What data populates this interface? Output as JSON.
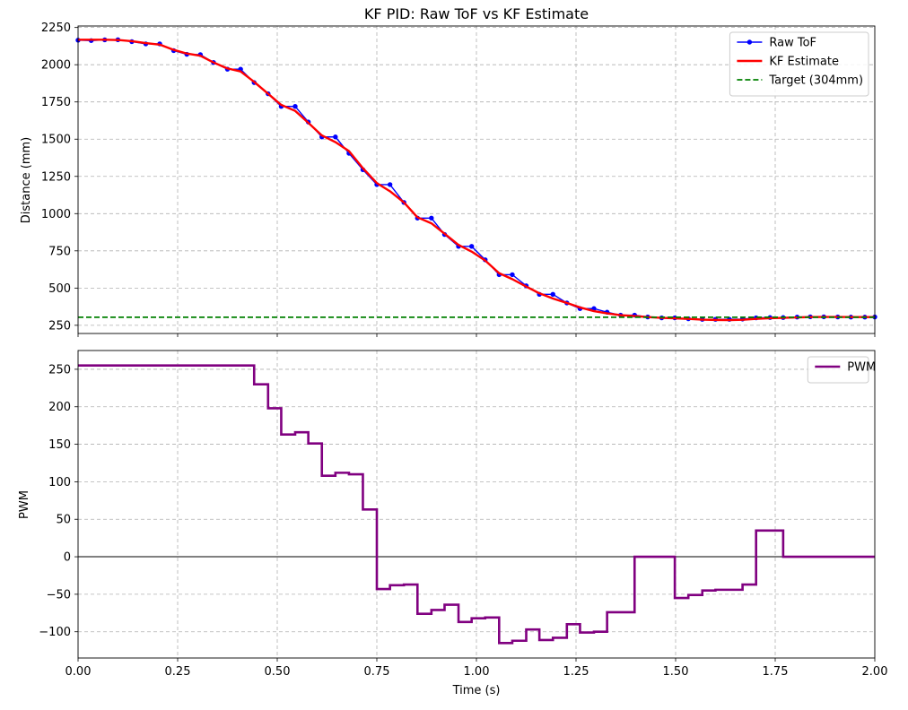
{
  "chart_data": [
    {
      "type": "line",
      "title": "KF PID: Raw ToF vs KF Estimate",
      "xlabel": "",
      "ylabel": "Distance (mm)",
      "xlim": [
        0,
        2.0
      ],
      "ylim": [
        195,
        2260
      ],
      "xticks": [
        0,
        0.25,
        0.5,
        0.75,
        1.0,
        1.25,
        1.5,
        1.75,
        2.0
      ],
      "xtick_labels": [
        "",
        "",
        "",
        "",
        "",
        "",
        "",
        "",
        ""
      ],
      "yticks": [
        250,
        500,
        750,
        1000,
        1250,
        1500,
        1750,
        2000,
        2250
      ],
      "ytick_labels": [
        "250",
        "500",
        "750",
        "1000",
        "1250",
        "1500",
        "1750",
        "2000",
        "2250"
      ],
      "grid": true,
      "legend_position": "top-right",
      "series": [
        {
          "name": "Raw ToF",
          "color": "#0000ff",
          "marker": "circle",
          "x": [
            0.0,
            0.033,
            0.067,
            0.1,
            0.135,
            0.17,
            0.205,
            0.24,
            0.273,
            0.307,
            0.34,
            0.375,
            0.408,
            0.442,
            0.477,
            0.51,
            0.545,
            0.578,
            0.612,
            0.646,
            0.68,
            0.715,
            0.75,
            0.783,
            0.818,
            0.852,
            0.887,
            0.92,
            0.955,
            0.988,
            1.022,
            1.057,
            1.09,
            1.125,
            1.158,
            1.192,
            1.227,
            1.26,
            1.295,
            1.328,
            1.362,
            1.397,
            1.43,
            1.465,
            1.498,
            1.532,
            1.567,
            1.6,
            1.635,
            1.668,
            1.702,
            1.737,
            1.77,
            1.805,
            1.838,
            1.872,
            1.907,
            1.94,
            1.975,
            2.0
          ],
          "y": [
            2165,
            2162,
            2167,
            2168,
            2155,
            2140,
            2140,
            2095,
            2070,
            2068,
            2015,
            1970,
            1970,
            1880,
            1805,
            1720,
            1720,
            1615,
            1515,
            1515,
            1405,
            1295,
            1195,
            1195,
            1075,
            970,
            970,
            860,
            780,
            780,
            690,
            590,
            590,
            515,
            458,
            458,
            400,
            362,
            362,
            338,
            318,
            318,
            306,
            300,
            300,
            294,
            290,
            290,
            290,
            292,
            300,
            302,
            302,
            305,
            307,
            307,
            306,
            305,
            305,
            306
          ]
        },
        {
          "name": "KF Estimate",
          "color": "#ff0000",
          "marker": "none",
          "x": [
            0.0,
            0.033,
            0.067,
            0.1,
            0.135,
            0.17,
            0.205,
            0.24,
            0.273,
            0.307,
            0.34,
            0.375,
            0.408,
            0.442,
            0.477,
            0.51,
            0.545,
            0.578,
            0.612,
            0.646,
            0.68,
            0.715,
            0.75,
            0.783,
            0.818,
            0.852,
            0.887,
            0.92,
            0.955,
            0.988,
            1.022,
            1.057,
            1.09,
            1.125,
            1.158,
            1.192,
            1.227,
            1.26,
            1.295,
            1.328,
            1.362,
            1.397,
            1.43,
            1.465,
            1.498,
            1.532,
            1.567,
            1.6,
            1.635,
            1.668,
            1.702,
            1.737,
            1.77,
            1.805,
            1.838,
            1.872,
            1.907,
            1.94,
            1.975,
            2.0
          ],
          "y": [
            2168,
            2168,
            2168,
            2166,
            2158,
            2145,
            2135,
            2100,
            2075,
            2060,
            2015,
            1975,
            1955,
            1885,
            1805,
            1730,
            1690,
            1610,
            1525,
            1480,
            1420,
            1305,
            1205,
            1150,
            1075,
            975,
            935,
            865,
            790,
            745,
            685,
            600,
            560,
            510,
            465,
            430,
            400,
            370,
            345,
            330,
            318,
            312,
            305,
            300,
            297,
            293,
            288,
            286,
            285,
            287,
            293,
            298,
            300,
            303,
            305,
            306,
            306,
            305,
            305,
            305
          ]
        },
        {
          "name": "Target (304mm)",
          "color": "#008000",
          "style": "dashed",
          "x": [
            0,
            2.0
          ],
          "y": [
            304,
            304
          ]
        }
      ]
    },
    {
      "type": "line",
      "title": "",
      "xlabel": "Time (s)",
      "ylabel": "PWM",
      "xlim": [
        0,
        2.0
      ],
      "ylim": [
        -135,
        275
      ],
      "xticks": [
        0,
        0.25,
        0.5,
        0.75,
        1.0,
        1.25,
        1.5,
        1.75,
        2.0
      ],
      "xtick_labels": [
        "0.00",
        "0.25",
        "0.50",
        "0.75",
        "1.00",
        "1.25",
        "1.50",
        "1.75",
        "2.00"
      ],
      "yticks": [
        -100,
        -50,
        0,
        50,
        100,
        150,
        200,
        250
      ],
      "ytick_labels": [
        "−100",
        "−50",
        "0",
        "50",
        "100",
        "150",
        "200",
        "250"
      ],
      "grid": true,
      "legend_position": "top-right",
      "zero_line": true,
      "series": [
        {
          "name": "PWM",
          "color": "#800080",
          "style": "step",
          "x": [
            0.0,
            0.442,
            0.477,
            0.51,
            0.545,
            0.578,
            0.612,
            0.646,
            0.68,
            0.715,
            0.75,
            0.783,
            0.818,
            0.852,
            0.887,
            0.92,
            0.955,
            0.988,
            1.022,
            1.057,
            1.09,
            1.125,
            1.158,
            1.192,
            1.227,
            1.26,
            1.295,
            1.328,
            1.362,
            1.397,
            1.43,
            1.465,
            1.498,
            1.532,
            1.567,
            1.6,
            1.635,
            1.668,
            1.702,
            1.737,
            1.77,
            2.0
          ],
          "y": [
            255,
            230,
            198,
            163,
            166,
            151,
            108,
            112,
            110,
            63,
            -43,
            -38,
            -37,
            -76,
            -71,
            -64,
            -87,
            -82,
            -81,
            -115,
            -112,
            -97,
            -111,
            -108,
            -90,
            -101,
            -100,
            -74,
            -74,
            0,
            0,
            0,
            -55,
            -51,
            -45,
            -44,
            -44,
            -37,
            35,
            35,
            0,
            0
          ]
        }
      ]
    }
  ]
}
